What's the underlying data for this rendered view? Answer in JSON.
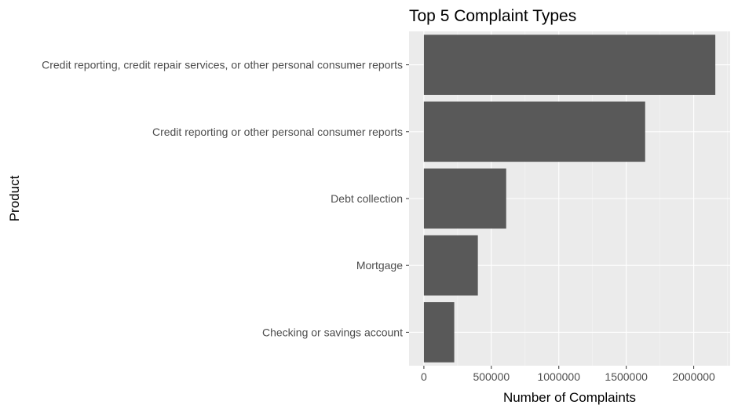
{
  "chart_data": {
    "type": "bar",
    "orientation": "horizontal",
    "title": "Top 5 Complaint Types",
    "xlabel": "Number of Complaints",
    "ylabel": "Product",
    "categories": [
      "Credit reporting, credit repair services, or other personal consumer reports",
      "Credit reporting or other personal consumer reports",
      "Debt collection",
      "Mortgage",
      "Checking or savings account"
    ],
    "values": [
      2160000,
      1640000,
      610000,
      400000,
      225000
    ],
    "xlim": [
      -110000,
      2270000
    ],
    "xticks": [
      0,
      500000,
      1000000,
      1500000,
      2000000
    ],
    "xtick_labels": [
      "0",
      "500000",
      "1000000",
      "1500000",
      "2000000"
    ],
    "grid": true,
    "legend": "none",
    "colors": {
      "bar": "#595959",
      "panel": "#ebebeb",
      "grid_major": "#ffffff",
      "grid_minor": "#f5f5f5",
      "tick": "#333333"
    }
  }
}
